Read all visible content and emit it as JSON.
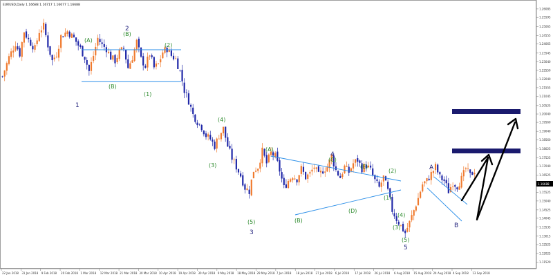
{
  "header": {
    "symbol_line": "EURUSD,Daily  1.16688 1.16717 1.16677 1.16688"
  },
  "colors": {
    "bull": "#f07a2e",
    "bear": "#2028a8",
    "trendline": "#2a8ee8",
    "wave_green": "#2e8b2e",
    "wave_navy": "#1f1f7a",
    "target_box": "#1a1a6e",
    "projection": "#000000",
    "axis": "#888888"
  },
  "chart_data": {
    "type": "candlestick",
    "symbol": "EURUSD",
    "timeframe": "Daily",
    "ylim": [
      1.113,
      1.262
    ],
    "y_ticks": [
      "1.26085",
      "1.25595",
      "1.25065",
      "1.24555",
      "1.24065",
      "1.23545",
      "1.23040",
      "1.22550",
      "1.22040",
      "1.21555",
      "1.21045",
      "1.20525",
      "1.20040",
      "1.19560",
      "1.19040",
      "1.18560",
      "1.18025",
      "1.17525",
      "1.17040",
      "1.16525",
      "1.16040",
      "1.15525",
      "1.15040",
      "1.14525",
      "1.14045",
      "1.13535",
      "1.13015",
      "1.12525",
      "1.12025",
      "1.11520"
    ],
    "current_price": "1.16688",
    "x_labels": [
      "22 Jan 2018",
      "31 Jan 2018",
      "9 Feb 2018",
      "20 Feb 2018",
      "1 Mar 2018",
      "12 Mar 2018",
      "21 Mar 2018",
      "30 Mar 2018",
      "10 Apr 2018",
      "19 Apr 2018",
      "30 Apr 2018",
      "9 May 2018",
      "18 May 2018",
      "29 May 2018",
      "7 Jun 2018",
      "18 Jun 2018",
      "27 Jun 2018",
      "6 Jul 2018",
      "17 Jul 2018",
      "26 Jul 2018",
      "6 Aug 2018",
      "15 Aug 2018",
      "24 Aug 2018",
      "4 Sep 2018",
      "13 Sep 2018"
    ],
    "price_path": [
      [
        0,
        1.222
      ],
      [
        3,
        1.233
      ],
      [
        6,
        1.241
      ],
      [
        8,
        1.235
      ],
      [
        10,
        1.248
      ],
      [
        12,
        1.243
      ],
      [
        15,
        1.238
      ],
      [
        17,
        1.248
      ],
      [
        19,
        1.251
      ],
      [
        21,
        1.24
      ],
      [
        23,
        1.231
      ],
      [
        25,
        1.235
      ],
      [
        27,
        1.245
      ],
      [
        30,
        1.248
      ],
      [
        33,
        1.244
      ],
      [
        36,
        1.238
      ],
      [
        38,
        1.233
      ],
      [
        40,
        1.225
      ],
      [
        42,
        1.234
      ],
      [
        44,
        1.244
      ],
      [
        46,
        1.24
      ],
      [
        48,
        1.238
      ],
      [
        50,
        1.233
      ],
      [
        52,
        1.231
      ],
      [
        54,
        1.236
      ],
      [
        56,
        1.238
      ],
      [
        58,
        1.227
      ],
      [
        60,
        1.233
      ],
      [
        62,
        1.242
      ],
      [
        64,
        1.232
      ],
      [
        66,
        1.228
      ],
      [
        68,
        1.235
      ],
      [
        70,
        1.227
      ],
      [
        72,
        1.229
      ],
      [
        74,
        1.236
      ],
      [
        76,
        1.238
      ],
      [
        78,
        1.234
      ],
      [
        80,
        1.232
      ],
      [
        82,
        1.225
      ],
      [
        84,
        1.214
      ],
      [
        86,
        1.208
      ],
      [
        88,
        1.2
      ],
      [
        90,
        1.196
      ],
      [
        92,
        1.193
      ],
      [
        94,
        1.188
      ],
      [
        96,
        1.186
      ],
      [
        98,
        1.182
      ],
      [
        100,
        1.188
      ],
      [
        102,
        1.192
      ],
      [
        104,
        1.182
      ],
      [
        106,
        1.175
      ],
      [
        108,
        1.17
      ],
      [
        110,
        1.165
      ],
      [
        112,
        1.158
      ],
      [
        114,
        1.156
      ],
      [
        116,
        1.168
      ],
      [
        118,
        1.17
      ],
      [
        120,
        1.179
      ],
      [
        122,
        1.172
      ],
      [
        124,
        1.178
      ],
      [
        126,
        1.176
      ],
      [
        128,
        1.168
      ],
      [
        130,
        1.158
      ],
      [
        132,
        1.162
      ],
      [
        134,
        1.165
      ],
      [
        136,
        1.163
      ],
      [
        138,
        1.169
      ],
      [
        140,
        1.164
      ],
      [
        142,
        1.166
      ],
      [
        144,
        1.17
      ],
      [
        146,
        1.165
      ],
      [
        148,
        1.168
      ],
      [
        150,
        1.17
      ],
      [
        152,
        1.176
      ],
      [
        154,
        1.168
      ],
      [
        156,
        1.164
      ],
      [
        158,
        1.17
      ],
      [
        160,
        1.167
      ],
      [
        162,
        1.172
      ],
      [
        164,
        1.174
      ],
      [
        166,
        1.169
      ],
      [
        168,
        1.171
      ],
      [
        170,
        1.168
      ],
      [
        172,
        1.162
      ],
      [
        174,
        1.158
      ],
      [
        176,
        1.164
      ],
      [
        178,
        1.156
      ],
      [
        180,
        1.145
      ],
      [
        182,
        1.14
      ],
      [
        184,
        1.136
      ],
      [
        186,
        1.132
      ],
      [
        188,
        1.138
      ],
      [
        190,
        1.145
      ],
      [
        192,
        1.152
      ],
      [
        194,
        1.16
      ],
      [
        196,
        1.162
      ],
      [
        198,
        1.166
      ],
      [
        200,
        1.17
      ],
      [
        202,
        1.164
      ],
      [
        204,
        1.162
      ],
      [
        206,
        1.156
      ],
      [
        208,
        1.161
      ],
      [
        210,
        1.159
      ],
      [
        212,
        1.163
      ],
      [
        214,
        1.169
      ],
      [
        216,
        1.165
      ],
      [
        218,
        1.168
      ]
    ]
  },
  "wave_labels": {
    "primary": [
      "1",
      "2",
      "3",
      "4",
      "5",
      "A",
      "B"
    ],
    "minor": [
      "(A)",
      "(B)",
      "(B)",
      "(1)",
      "(2)",
      "(3)",
      "(4)",
      "(5)",
      "(A)",
      "(B)",
      "(C)",
      "(D)",
      "(E)",
      "(1)",
      "(2)",
      "(3)",
      "(4)",
      "(5)"
    ]
  }
}
